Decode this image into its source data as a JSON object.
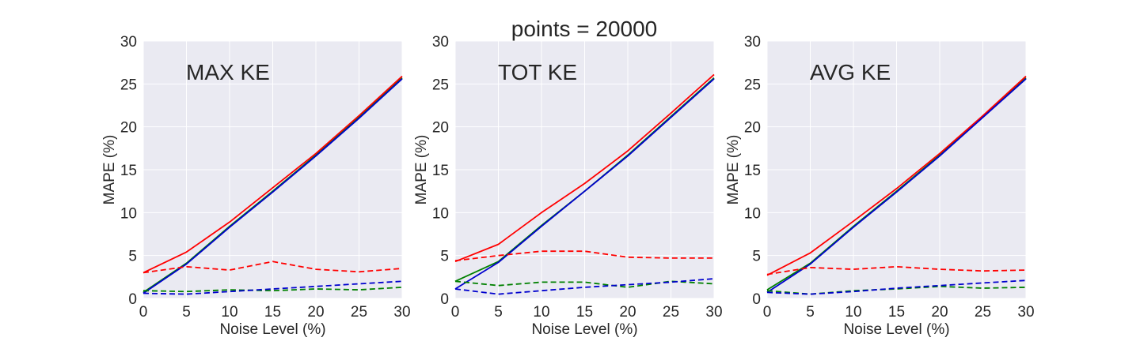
{
  "figure": {
    "suptitle": "points = 20000"
  },
  "chart_data": [
    {
      "type": "line",
      "title": "MAX KE",
      "xlabel": "Noise Level (%)",
      "ylabel": "MAPE (%)",
      "xlim": [
        0,
        30
      ],
      "ylim": [
        0,
        30
      ],
      "x": [
        0,
        5,
        10,
        15,
        20,
        25,
        30
      ],
      "xticks": [
        "0",
        "5",
        "10",
        "15",
        "20",
        "25",
        "30"
      ],
      "yticks": [
        "0",
        "5",
        "10",
        "15",
        "20",
        "25",
        "30"
      ],
      "grid": true,
      "series": [
        {
          "color": "#008000",
          "dash": "solid",
          "values": [
            0.7,
            4.1,
            8.4,
            12.5,
            16.7,
            21.1,
            25.7
          ]
        },
        {
          "color": "#ff0000",
          "dash": "solid",
          "values": [
            3.0,
            5.4,
            8.9,
            12.9,
            16.9,
            21.3,
            25.9
          ]
        },
        {
          "color": "#0000cd",
          "dash": "solid",
          "values": [
            0.6,
            4.0,
            8.3,
            12.4,
            16.6,
            21.0,
            25.6
          ]
        },
        {
          "color": "#008000",
          "dash": "dashed",
          "values": [
            0.9,
            0.8,
            1.0,
            0.9,
            1.1,
            1.0,
            1.3
          ]
        },
        {
          "color": "#ff0000",
          "dash": "dashed",
          "values": [
            3.0,
            3.7,
            3.3,
            4.3,
            3.4,
            3.1,
            3.5
          ]
        },
        {
          "color": "#0000cd",
          "dash": "dashed",
          "values": [
            0.6,
            0.5,
            0.8,
            1.1,
            1.4,
            1.7,
            2.0
          ]
        }
      ]
    },
    {
      "type": "line",
      "title": "TOT KE",
      "xlabel": "Noise Level (%)",
      "ylabel": "MAPE (%)",
      "xlim": [
        0,
        30
      ],
      "ylim": [
        0,
        30
      ],
      "x": [
        0,
        5,
        10,
        15,
        20,
        25,
        30
      ],
      "xticks": [
        "0",
        "5",
        "10",
        "15",
        "20",
        "25",
        "30"
      ],
      "yticks": [
        "0",
        "5",
        "10",
        "15",
        "20",
        "25",
        "30"
      ],
      "grid": true,
      "series": [
        {
          "color": "#008000",
          "dash": "solid",
          "values": [
            2.0,
            4.3,
            8.5,
            12.5,
            16.7,
            21.2,
            25.7
          ]
        },
        {
          "color": "#ff0000",
          "dash": "solid",
          "values": [
            4.3,
            6.3,
            10.0,
            13.4,
            17.2,
            21.6,
            26.1
          ]
        },
        {
          "color": "#0000cd",
          "dash": "solid",
          "values": [
            1.1,
            4.2,
            8.4,
            12.5,
            16.6,
            21.1,
            25.6
          ]
        },
        {
          "color": "#008000",
          "dash": "dashed",
          "values": [
            2.0,
            1.5,
            1.9,
            1.9,
            1.3,
            2.0,
            1.7
          ]
        },
        {
          "color": "#ff0000",
          "dash": "dashed",
          "values": [
            4.4,
            5.0,
            5.5,
            5.5,
            4.8,
            4.7,
            4.7
          ]
        },
        {
          "color": "#0000cd",
          "dash": "dashed",
          "values": [
            1.1,
            0.5,
            0.9,
            1.3,
            1.6,
            1.9,
            2.3
          ]
        }
      ]
    },
    {
      "type": "line",
      "title": "AVG KE",
      "xlabel": "Noise Level (%)",
      "ylabel": "MAPE (%)",
      "xlim": [
        0,
        30
      ],
      "ylim": [
        0,
        30
      ],
      "x": [
        0,
        5,
        10,
        15,
        20,
        25,
        30
      ],
      "xticks": [
        "0",
        "5",
        "10",
        "15",
        "20",
        "25",
        "30"
      ],
      "yticks": [
        "0",
        "5",
        "10",
        "15",
        "20",
        "25",
        "30"
      ],
      "grid": true,
      "series": [
        {
          "color": "#008000",
          "dash": "solid",
          "values": [
            1.0,
            4.1,
            8.4,
            12.5,
            16.7,
            21.2,
            25.7
          ]
        },
        {
          "color": "#ff0000",
          "dash": "solid",
          "values": [
            2.7,
            5.3,
            9.0,
            12.8,
            16.9,
            21.3,
            25.9
          ]
        },
        {
          "color": "#0000cd",
          "dash": "solid",
          "values": [
            0.7,
            4.0,
            8.3,
            12.4,
            16.6,
            21.1,
            25.6
          ]
        },
        {
          "color": "#008000",
          "dash": "dashed",
          "values": [
            0.9,
            0.5,
            0.9,
            1.1,
            1.4,
            1.2,
            1.3
          ]
        },
        {
          "color": "#ff0000",
          "dash": "dashed",
          "values": [
            2.8,
            3.6,
            3.4,
            3.7,
            3.4,
            3.2,
            3.3
          ]
        },
        {
          "color": "#0000cd",
          "dash": "dashed",
          "values": [
            0.7,
            0.5,
            0.8,
            1.2,
            1.5,
            1.8,
            2.1
          ]
        }
      ]
    }
  ]
}
